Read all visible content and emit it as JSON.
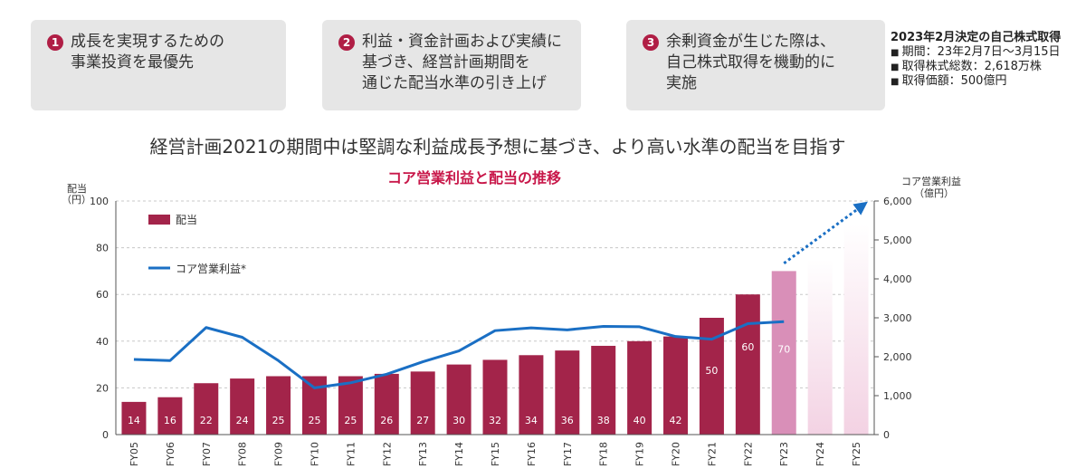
{
  "policy_boxes": [
    {
      "number": "1",
      "lines": [
        "成長を実現するための",
        "事業投資を最優先"
      ]
    },
    {
      "number": "2",
      "lines": [
        "利益・資金計画および実績に",
        "基づき、経営計画期間を",
        "通じた配当水準の引き上げ"
      ]
    },
    {
      "number": "3",
      "lines": [
        "余剰資金が生じた際は、",
        "自己株式取得を機動的に",
        "実施"
      ]
    }
  ],
  "buyback": {
    "title": "2023年2月決定の自己株式取得",
    "items": [
      "期間：23年2月7日～3月15日",
      "取得株式総数：2,618万株",
      "取得価額：500億円"
    ]
  },
  "headline": "経営計画2021の期間中は堅調な利益成長予想に基づき、より高い水準の配当を目指す",
  "colors": {
    "bar": "#a3244a",
    "bar_forecast": "#d98fb8",
    "bar_future": "#f5dbe8",
    "line": "#1a6fc4",
    "title": "#c8184a"
  },
  "chart_data": {
    "type": "bar",
    "title": "コア営業利益と配当の推移",
    "left_axis_label": [
      "配当",
      "（円）"
    ],
    "right_axis_label": [
      "コア営業利益",
      "（億円）"
    ],
    "categories": [
      "FY05",
      "FY06",
      "FY07",
      "FY08",
      "FY09",
      "FY10",
      "FY11",
      "FY12",
      "FY13",
      "FY14",
      "FY15",
      "FY16",
      "FY17",
      "FY18",
      "FY19",
      "FY20",
      "FY21",
      "FY22",
      "FY23",
      "FY24",
      "FY25"
    ],
    "ylim_left": [
      0,
      100
    ],
    "yticks_left": [
      0,
      20,
      40,
      60,
      80,
      100
    ],
    "ylim_right": [
      0,
      6000
    ],
    "yticks_right": [
      "0",
      "1,000",
      "2,000",
      "3,000",
      "4,000",
      "5,000",
      "6,000"
    ],
    "series": [
      {
        "name": "配当",
        "type": "bar",
        "axis": "left",
        "values": [
          14,
          16,
          22,
          24,
          25,
          25,
          25,
          26,
          27,
          30,
          32,
          34,
          36,
          38,
          40,
          42,
          50,
          60,
          70,
          null,
          null
        ],
        "value_labels": [
          "14",
          "16",
          "22",
          "24",
          "25",
          "25",
          "25",
          "26",
          "27",
          "30",
          "32",
          "34",
          "36",
          "38",
          "40",
          "42",
          "50",
          "60",
          "70",
          "",
          ""
        ]
      },
      {
        "name": "コア営業利益*",
        "type": "line",
        "axis": "right",
        "values": [
          1930,
          1900,
          2750,
          2500,
          1900,
          1200,
          1330,
          1550,
          1870,
          2150,
          2670,
          2740,
          2690,
          2780,
          2770,
          2520,
          2450,
          2850,
          2900,
          null,
          null
        ]
      }
    ],
    "future_bar_heights": [
      null,
      null,
      null,
      null,
      null,
      null,
      null,
      null,
      null,
      null,
      null,
      null,
      null,
      null,
      null,
      null,
      null,
      null,
      null,
      75,
      90
    ],
    "trend_arrow": {
      "from": [
        18,
        4400
      ],
      "to": [
        20.2,
        5900
      ]
    },
    "legend_position": "top-left",
    "grid": true
  }
}
